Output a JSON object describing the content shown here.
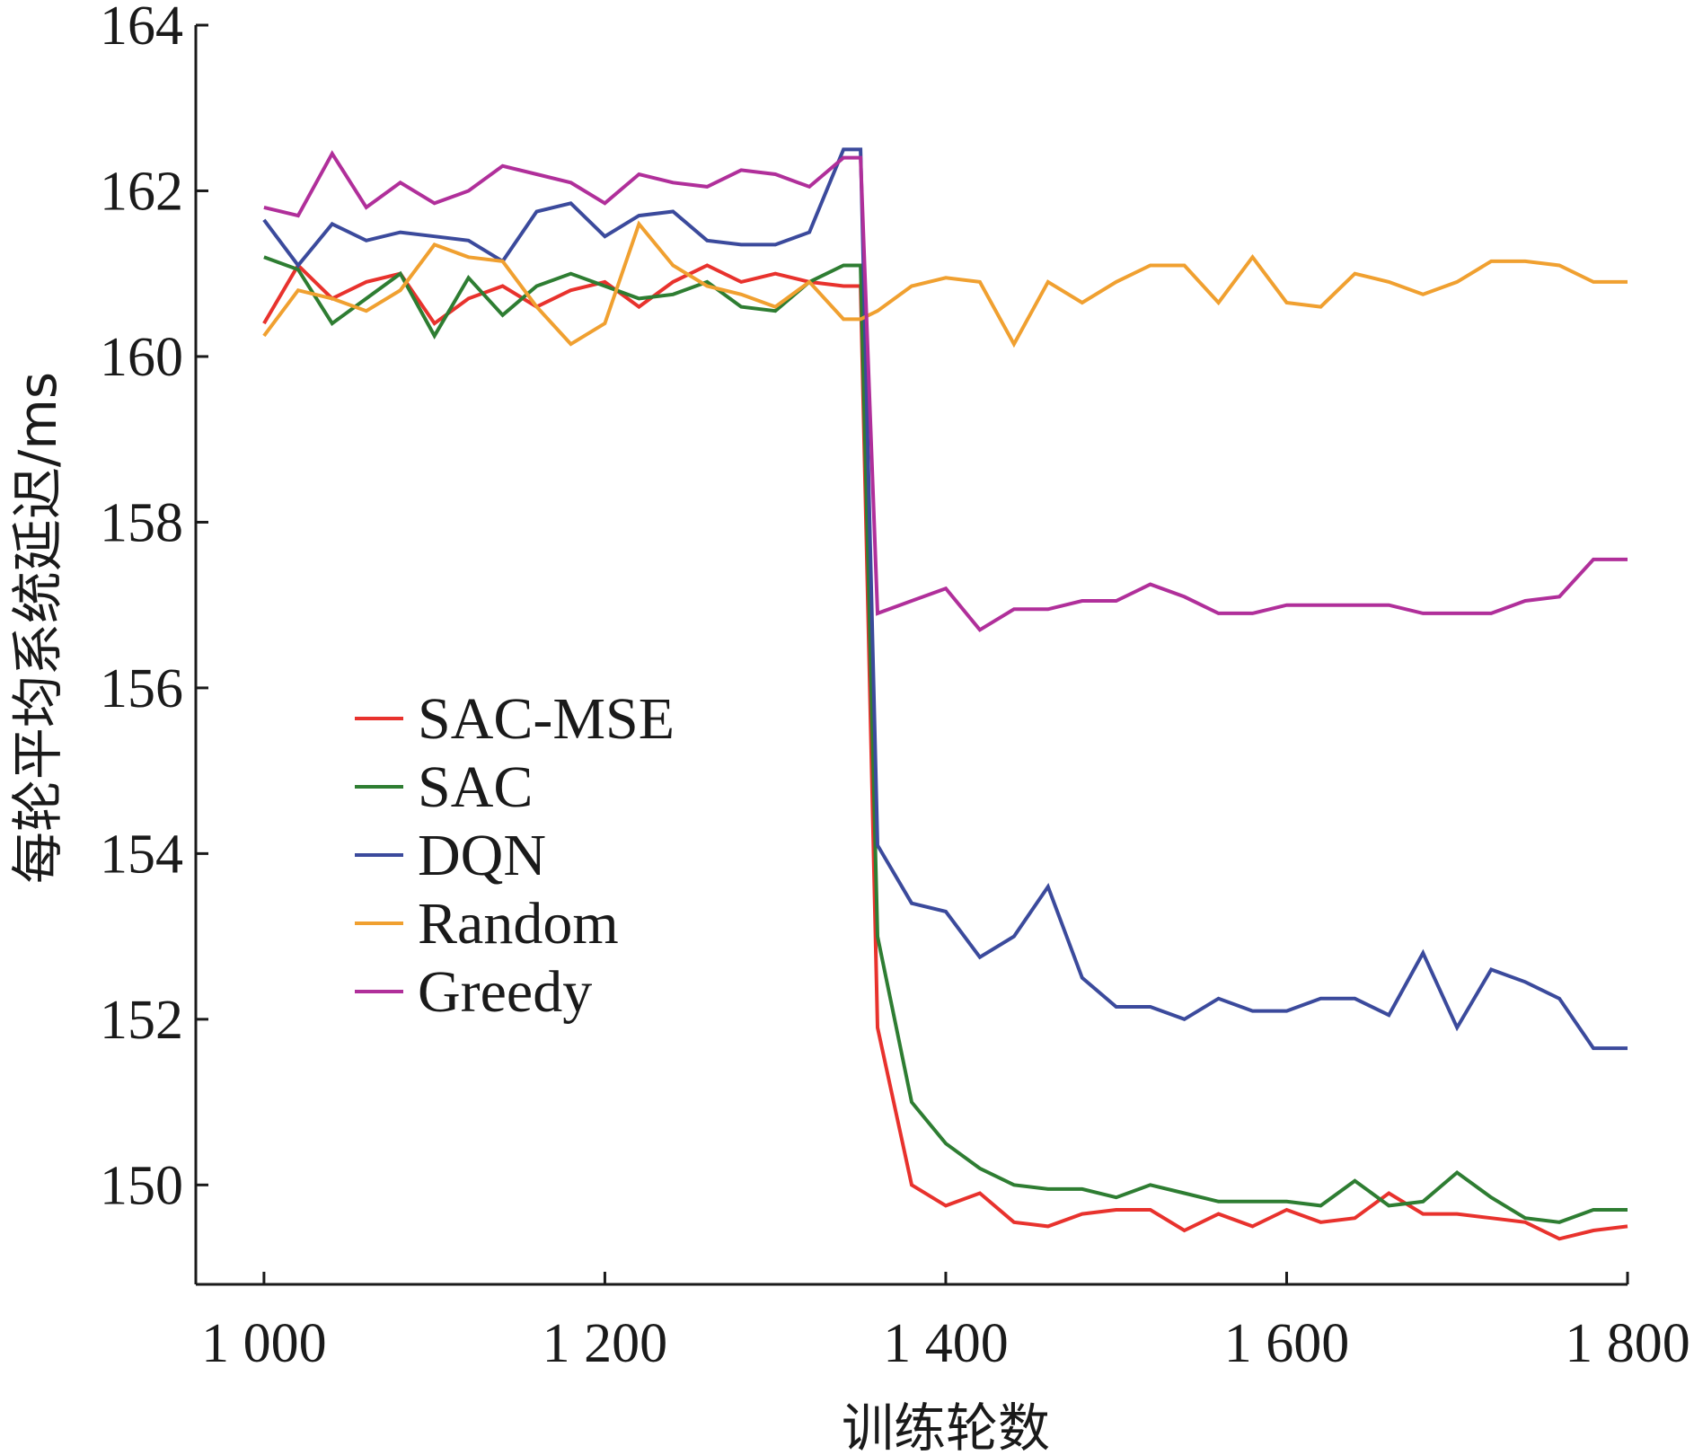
{
  "chart_data": {
    "type": "line",
    "title": "",
    "xlabel": "训练轮数",
    "ylabel": "每轮平均系统延迟/ms",
    "xlim": [
      1000,
      1800
    ],
    "ylim": [
      148.8,
      164
    ],
    "xticks": [
      1000,
      1200,
      1400,
      1600,
      1800
    ],
    "xtick_labels": [
      "1 000",
      "1 200",
      "1 400",
      "1 600",
      "1 800"
    ],
    "yticks": [
      150,
      152,
      154,
      156,
      158,
      160,
      162,
      164
    ],
    "ytick_labels": [
      "150",
      "152",
      "154",
      "156",
      "158",
      "160",
      "162",
      "164"
    ],
    "grid": false,
    "legend_position": "center-left",
    "x": [
      1000,
      1020,
      1040,
      1060,
      1080,
      1100,
      1120,
      1140,
      1160,
      1180,
      1200,
      1220,
      1240,
      1260,
      1280,
      1300,
      1320,
      1340,
      1350,
      1360,
      1380,
      1400,
      1420,
      1440,
      1460,
      1480,
      1500,
      1520,
      1540,
      1560,
      1580,
      1600,
      1620,
      1640,
      1660,
      1680,
      1700,
      1720,
      1740,
      1760,
      1780,
      1800
    ],
    "series": [
      {
        "name": "SAC-MSE",
        "color": "#e8322d",
        "values": [
          160.4,
          161.1,
          160.7,
          160.9,
          161.0,
          160.4,
          160.7,
          160.85,
          160.6,
          160.8,
          160.9,
          160.6,
          160.9,
          161.1,
          160.9,
          161.0,
          160.9,
          160.85,
          160.85,
          151.9,
          150.0,
          149.75,
          149.9,
          149.55,
          149.5,
          149.65,
          149.7,
          149.7,
          149.45,
          149.65,
          149.5,
          149.7,
          149.55,
          149.6,
          149.9,
          149.65,
          149.65,
          149.6,
          149.55,
          149.35,
          149.45,
          149.5
        ]
      },
      {
        "name": "SAC",
        "color": "#2e7d32",
        "values": [
          161.2,
          161.05,
          160.4,
          160.7,
          161.0,
          160.25,
          160.95,
          160.5,
          160.85,
          161.0,
          160.85,
          160.7,
          160.75,
          160.9,
          160.6,
          160.55,
          160.9,
          161.1,
          161.1,
          153.0,
          151.0,
          150.5,
          150.2,
          150.0,
          149.95,
          149.95,
          149.85,
          150.0,
          149.9,
          149.8,
          149.8,
          149.8,
          149.75,
          150.05,
          149.75,
          149.8,
          150.15,
          149.85,
          149.6,
          149.55,
          149.7,
          149.7
        ]
      },
      {
        "name": "DQN",
        "color": "#3b4a9c",
        "values": [
          161.65,
          161.1,
          161.6,
          161.4,
          161.5,
          161.45,
          161.4,
          161.15,
          161.75,
          161.85,
          161.45,
          161.7,
          161.75,
          161.4,
          161.35,
          161.35,
          161.5,
          162.5,
          162.5,
          154.1,
          153.4,
          153.3,
          152.75,
          153.0,
          153.6,
          152.5,
          152.15,
          152.15,
          152.0,
          152.25,
          152.1,
          152.1,
          152.25,
          152.25,
          152.05,
          152.8,
          151.9,
          152.6,
          152.45,
          152.25,
          151.65,
          151.65
        ]
      },
      {
        "name": "Random",
        "color": "#f0a030",
        "values": [
          160.25,
          160.8,
          160.7,
          160.55,
          160.8,
          161.35,
          161.2,
          161.15,
          160.6,
          160.15,
          160.4,
          161.6,
          161.1,
          160.85,
          160.75,
          160.6,
          160.9,
          160.45,
          160.45,
          160.55,
          160.85,
          160.95,
          160.9,
          160.15,
          160.9,
          160.65,
          160.9,
          161.1,
          161.1,
          160.65,
          161.2,
          160.65,
          160.6,
          161.0,
          160.9,
          160.75,
          160.9,
          161.15,
          161.15,
          161.1,
          160.9,
          160.9
        ]
      },
      {
        "name": "Greedy",
        "color": "#b02f9a",
        "values": [
          161.8,
          161.7,
          162.45,
          161.8,
          162.1,
          161.85,
          162.0,
          162.3,
          162.2,
          162.1,
          161.85,
          162.2,
          162.1,
          162.05,
          162.25,
          162.2,
          162.05,
          162.4,
          162.4,
          156.9,
          157.05,
          157.2,
          156.7,
          156.95,
          156.95,
          157.05,
          157.05,
          157.25,
          157.1,
          156.9,
          156.9,
          157.0,
          157.0,
          157.0,
          157.0,
          156.9,
          156.9,
          156.9,
          157.05,
          157.1,
          157.55,
          157.55
        ]
      }
    ]
  }
}
